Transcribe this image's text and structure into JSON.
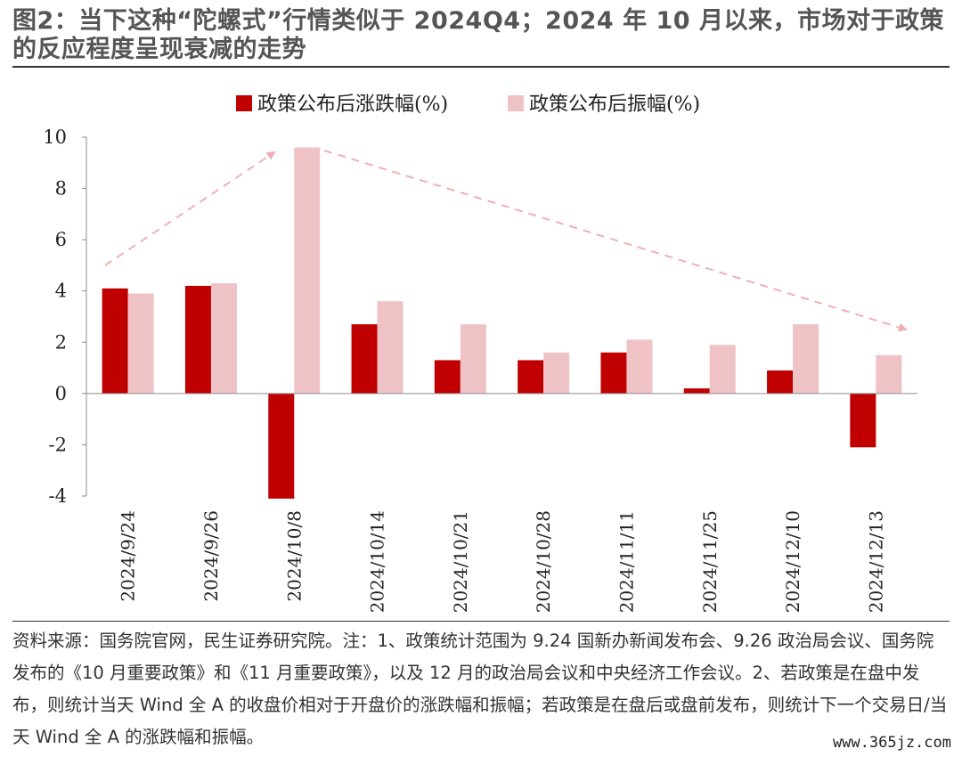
{
  "title": "图2：当下这种“陀螺式”行情类似于 2024Q4；2024 年 10 月以来，市场对于政策的反应程度呈现衰减的走势",
  "chart_data": {
    "type": "bar",
    "categories": [
      "2024/9/24",
      "2024/9/26",
      "2024/10/8",
      "2024/10/14",
      "2024/10/21",
      "2024/10/28",
      "2024/11/11",
      "2024/11/25",
      "2024/12/10",
      "2024/12/13"
    ],
    "series": [
      {
        "name": "政策公布后涨跌幅(%)",
        "color": "#C00000",
        "values": [
          4.1,
          4.2,
          -4.1,
          2.7,
          1.3,
          1.3,
          1.6,
          0.2,
          0.9,
          -2.1
        ]
      },
      {
        "name": "政策公布后振幅(%)",
        "color": "#EFC3C6",
        "values": [
          3.9,
          4.3,
          9.6,
          3.6,
          2.7,
          1.6,
          2.1,
          1.9,
          2.7,
          1.5
        ]
      }
    ],
    "yticks": [
      10,
      8,
      6,
      4,
      2,
      0,
      -2,
      -4
    ],
    "ylim": [
      -4,
      10
    ],
    "legend_position": "top",
    "annotations": "dashed arrows showing rise then decay"
  },
  "footer": "资料来源：国务院官网，民生证券研究院。注：1、政策统计范围为 9.24 国新办新闻发布会、9.26 政治局会议、国务院发布的《10 月重要政策》和《11 月重要政策》，以及 12 月的政治局会议和中央经济工作会议。2、若政策是在盘中发布，则统计当天 Wind 全 A 的收盘价相对于开盘价的涨跌幅和振幅；若政策是在盘后或盘前发布，则统计下一个交易日/当天 Wind 全 A 的涨跌幅和振幅。",
  "watermark": "www.365jz.com"
}
